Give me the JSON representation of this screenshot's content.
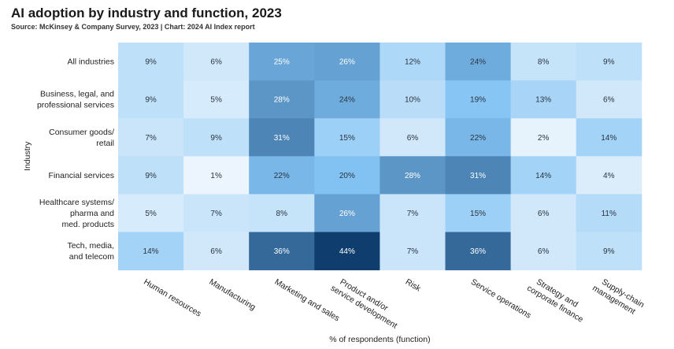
{
  "chart_data": {
    "type": "heatmap",
    "title": "AI adoption by industry and function, 2023",
    "subtitle": "Source: McKinsey & Company Survey, 2023 | Chart: 2024 AI Index report",
    "xlabel": "% of respondents (function)",
    "ylabel": "Industry",
    "value_suffix": "%",
    "rows": [
      [
        "All industries"
      ],
      [
        "Business, legal, and",
        "professional services"
      ],
      [
        "Consumer goods/",
        "retail"
      ],
      [
        "Financial services"
      ],
      [
        "Healthcare systems/",
        "pharma and",
        "med. products"
      ],
      [
        "Tech, media,",
        "and telecom"
      ]
    ],
    "columns": [
      [
        "Human resources"
      ],
      [
        "Manufacturing"
      ],
      [
        "Marketing and sales"
      ],
      [
        "Product and/or",
        "service development"
      ],
      [
        "Risk"
      ],
      [
        "Service operations"
      ],
      [
        "Strategy and",
        "corporate finance"
      ],
      [
        "Supply-chain",
        "management"
      ]
    ],
    "values": [
      [
        9,
        6,
        25,
        26,
        12,
        24,
        8,
        9
      ],
      [
        9,
        5,
        28,
        24,
        10,
        19,
        13,
        6
      ],
      [
        7,
        9,
        31,
        15,
        6,
        22,
        2,
        14
      ],
      [
        9,
        1,
        22,
        20,
        28,
        31,
        14,
        4
      ],
      [
        5,
        7,
        8,
        26,
        7,
        15,
        6,
        11
      ],
      [
        14,
        6,
        36,
        44,
        7,
        36,
        6,
        9
      ]
    ],
    "colors": {
      "low": "#f2f8fd",
      "mid": "#82c3f4",
      "high": "#0f3d6e",
      "text_dark": "#2a3440",
      "text_light": "#ffffff"
    }
  }
}
